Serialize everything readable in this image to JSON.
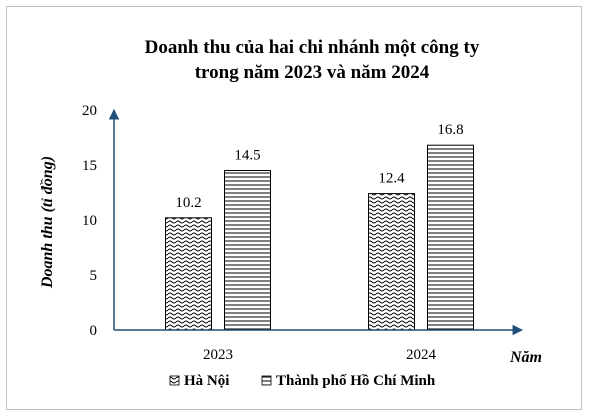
{
  "chart_data": {
    "type": "bar",
    "title_line1": "Doanh thu của hai chi nhánh một công ty",
    "title_line2": "trong năm 2023 và năm 2024",
    "xlabel": "Năm",
    "ylabel": "Doanh thu (tỉ đồng)",
    "categories": [
      "2023",
      "2024"
    ],
    "yticks": [
      "0",
      "5",
      "10",
      "15",
      "20"
    ],
    "ylim": [
      0,
      20
    ],
    "series": [
      {
        "name": "Hà Nội",
        "pattern": "waves",
        "values": [
          10.2,
          12.4
        ],
        "labels": [
          "10.2",
          "12.4"
        ]
      },
      {
        "name": "Thành phố Hồ Chí Minh",
        "pattern": "horizontal-lines",
        "values": [
          14.5,
          16.8
        ],
        "labels": [
          "14.5",
          "16.8"
        ]
      }
    ],
    "legend_position": "bottom",
    "grid": false,
    "colors": {
      "axis": "#1f4e79",
      "bar_stroke": "#000000",
      "text": "#000000"
    }
  }
}
